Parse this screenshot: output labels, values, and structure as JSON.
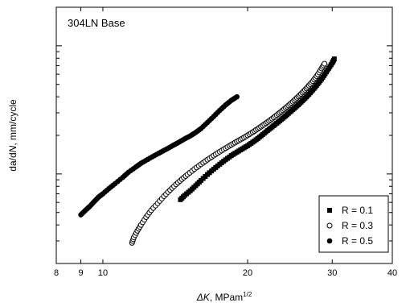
{
  "chart_data": {
    "type": "scatter",
    "x_scale": "log",
    "y_scale": "log",
    "xlim": [
      8,
      40
    ],
    "ylim": [
      2e-06,
      0.0002
    ],
    "x_ticks": [
      8,
      9,
      10,
      20,
      30,
      40
    ],
    "x_tick_labels": [
      "8",
      "9",
      "10",
      "20",
      "30",
      "40"
    ],
    "ylabel_prefix": "da/d",
    "ylabel_italic_var": "N",
    "ylabel_suffix": ", mm/cycle",
    "xlabel_delta": "ΔK",
    "xlabel_unit": ", MPam",
    "xlabel_exponent": "1/2",
    "annotation": "304LN Base",
    "legend_position": "bottom-right",
    "grid": false,
    "series": [
      {
        "name": "R = 0.1",
        "marker": "square",
        "color": "#000000",
        "points": [
          [
            14.5,
            6.3e-06
          ],
          [
            14.8,
            6.8e-06
          ],
          [
            15.2,
            7.4e-06
          ],
          [
            15.6,
            8.1e-06
          ],
          [
            16.0,
            8.9e-06
          ],
          [
            16.5,
            9.9e-06
          ],
          [
            17.0,
            1.09e-05
          ],
          [
            17.5,
            1.19e-05
          ],
          [
            18.0,
            1.29e-05
          ],
          [
            18.5,
            1.39e-05
          ],
          [
            19.0,
            1.48e-05
          ],
          [
            19.5,
            1.57e-05
          ],
          [
            20.0,
            1.66e-05
          ],
          [
            20.5,
            1.77e-05
          ],
          [
            21.0,
            1.89e-05
          ],
          [
            21.5,
            2.03e-05
          ],
          [
            22.0,
            2.18e-05
          ],
          [
            22.5,
            2.33e-05
          ],
          [
            23.0,
            2.49e-05
          ],
          [
            23.5,
            2.66e-05
          ],
          [
            24.0,
            2.84e-05
          ],
          [
            24.5,
            3.04e-05
          ],
          [
            25.0,
            3.25e-05
          ],
          [
            25.5,
            3.47e-05
          ],
          [
            26.0,
            3.72e-05
          ],
          [
            26.5,
            3.99e-05
          ],
          [
            27.0,
            4.3e-05
          ],
          [
            27.5,
            4.65e-05
          ],
          [
            28.0,
            5.05e-05
          ],
          [
            28.5,
            5.5e-05
          ],
          [
            29.0,
            6.05e-05
          ],
          [
            29.5,
            6.68e-05
          ],
          [
            30.0,
            7.35e-05
          ],
          [
            30.3,
            7.9e-05
          ]
        ]
      },
      {
        "name": "R = 0.3",
        "marker": "circle-open",
        "color": "#000000",
        "points": [
          [
            11.5,
            2.9e-06
          ],
          [
            11.6,
            3.2e-06
          ],
          [
            11.8,
            3.6e-06
          ],
          [
            12.0,
            4e-06
          ],
          [
            12.3,
            4.6e-06
          ],
          [
            12.6,
            5.2e-06
          ],
          [
            13.0,
            5.9e-06
          ],
          [
            13.4,
            6.7e-06
          ],
          [
            13.8,
            7.5e-06
          ],
          [
            14.2,
            8.3e-06
          ],
          [
            14.6,
            9.1e-06
          ],
          [
            15.0,
            9.9e-06
          ],
          [
            15.5,
            1.09e-05
          ],
          [
            16.0,
            1.19e-05
          ],
          [
            16.5,
            1.29e-05
          ],
          [
            17.0,
            1.39e-05
          ],
          [
            17.5,
            1.49e-05
          ],
          [
            18.0,
            1.59e-05
          ],
          [
            18.5,
            1.69e-05
          ],
          [
            19.0,
            1.79e-05
          ],
          [
            19.5,
            1.89e-05
          ],
          [
            20.0,
            2e-05
          ],
          [
            20.5,
            2.12e-05
          ],
          [
            21.0,
            2.25e-05
          ],
          [
            21.5,
            2.39e-05
          ],
          [
            22.0,
            2.54e-05
          ],
          [
            22.5,
            2.7e-05
          ],
          [
            23.0,
            2.88e-05
          ],
          [
            23.5,
            3.07e-05
          ],
          [
            24.0,
            3.28e-05
          ],
          [
            24.5,
            3.5e-05
          ],
          [
            25.0,
            3.75e-05
          ],
          [
            25.5,
            4.02e-05
          ],
          [
            26.0,
            4.32e-05
          ],
          [
            26.5,
            4.65e-05
          ],
          [
            27.0,
            5.02e-05
          ],
          [
            27.5,
            5.45e-05
          ],
          [
            28.0,
            5.98e-05
          ],
          [
            28.5,
            6.65e-05
          ],
          [
            28.9,
            7.25e-05
          ]
        ]
      },
      {
        "name": "R = 0.5",
        "marker": "circle-filled",
        "color": "#000000",
        "points": [
          [
            9.0,
            4.8e-06
          ],
          [
            9.2,
            5.2e-06
          ],
          [
            9.4,
            5.6e-06
          ],
          [
            9.6,
            6.1e-06
          ],
          [
            9.8,
            6.6e-06
          ],
          [
            10.0,
            7e-06
          ],
          [
            10.3,
            7.7e-06
          ],
          [
            10.6,
            8.4e-06
          ],
          [
            11.0,
            9.4e-06
          ],
          [
            11.3,
            1.03e-05
          ],
          [
            11.7,
            1.13e-05
          ],
          [
            12.0,
            1.21e-05
          ],
          [
            12.4,
            1.3e-05
          ],
          [
            12.8,
            1.39e-05
          ],
          [
            13.2,
            1.48e-05
          ],
          [
            13.6,
            1.57e-05
          ],
          [
            14.0,
            1.67e-05
          ],
          [
            14.4,
            1.77e-05
          ],
          [
            14.8,
            1.88e-05
          ],
          [
            15.2,
            1.98e-05
          ],
          [
            15.6,
            2.11e-05
          ],
          [
            16.0,
            2.26e-05
          ],
          [
            16.5,
            2.52e-05
          ],
          [
            17.0,
            2.81e-05
          ],
          [
            17.5,
            3.13e-05
          ],
          [
            18.0,
            3.45e-05
          ],
          [
            18.5,
            3.75e-05
          ],
          [
            19.0,
            4e-05
          ]
        ]
      }
    ]
  }
}
